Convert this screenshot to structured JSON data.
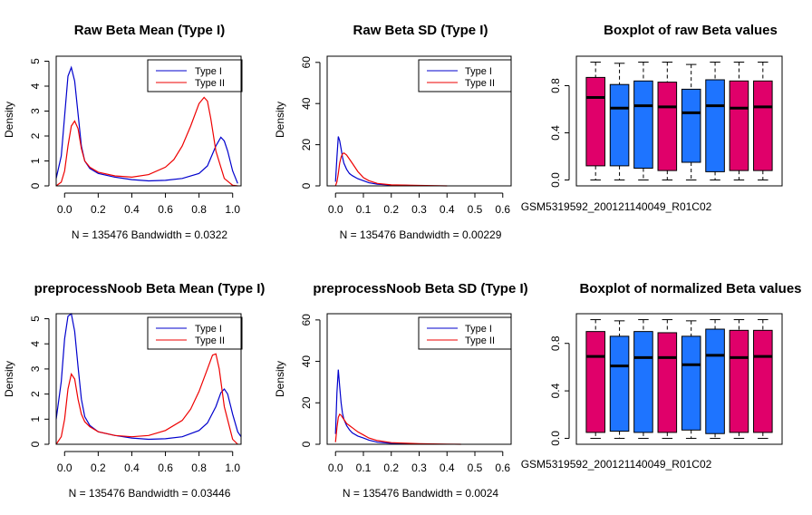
{
  "colors": {
    "type1": "#0000CD",
    "type2": "#EE0000",
    "magenta": "#E0006A",
    "blue": "#1E74FF",
    "axis": "#000000",
    "base": "#BEBEBE"
  },
  "panels": [
    {
      "id": "p1",
      "title": "Raw Beta Mean (Type I)",
      "footer": "N = 135476   Bandwidth = 0.0322",
      "ylabel": "Density"
    },
    {
      "id": "p2",
      "title": "Raw Beta SD (Type I)",
      "footer": "N = 135476   Bandwidth = 0.00229",
      "ylabel": "Density"
    },
    {
      "id": "p3",
      "title": "Boxplot of raw Beta values",
      "footer": "GSM5319592_200121140049_R01C02"
    },
    {
      "id": "p4",
      "title": "preprocessNoob Beta Mean (Type I)",
      "footer": "N = 135476   Bandwidth = 0.03446",
      "ylabel": "Density"
    },
    {
      "id": "p5",
      "title": "preprocessNoob Beta SD (Type I)",
      "footer": "N = 135476   Bandwidth = 0.0024",
      "ylabel": "Density"
    },
    {
      "id": "p6",
      "title": "Boxplot of normalized Beta values",
      "footer": "GSM5319592_200121140049_R01C02"
    }
  ],
  "legend": [
    "Type I",
    "Type II"
  ],
  "chart_data": [
    {
      "type": "line",
      "title": "Raw Beta Mean (Type I)",
      "xlabel": "N = 135476   Bandwidth = 0.0322",
      "ylabel": "Density",
      "xlim": [
        -0.05,
        1.05
      ],
      "ylim": [
        0,
        5.2
      ],
      "xticks": [
        "0.0",
        "0.2",
        "0.4",
        "0.6",
        "0.8",
        "1.0"
      ],
      "yticks": [
        "0",
        "1",
        "2",
        "3",
        "4",
        "5"
      ],
      "series": [
        {
          "name": "Type I",
          "x": [
            -0.05,
            -0.02,
            0.0,
            0.02,
            0.04,
            0.06,
            0.08,
            0.1,
            0.12,
            0.15,
            0.2,
            0.3,
            0.4,
            0.5,
            0.6,
            0.7,
            0.8,
            0.85,
            0.9,
            0.93,
            0.95,
            0.97,
            1.0,
            1.03
          ],
          "y": [
            0.3,
            1.2,
            2.8,
            4.4,
            4.75,
            4.2,
            2.9,
            1.6,
            1.0,
            0.7,
            0.5,
            0.35,
            0.25,
            0.2,
            0.22,
            0.3,
            0.5,
            0.8,
            1.6,
            1.95,
            1.8,
            1.4,
            0.6,
            0.1
          ]
        },
        {
          "name": "Type II",
          "x": [
            -0.05,
            -0.02,
            0.0,
            0.02,
            0.04,
            0.06,
            0.08,
            0.1,
            0.12,
            0.15,
            0.2,
            0.3,
            0.4,
            0.5,
            0.6,
            0.65,
            0.7,
            0.75,
            0.8,
            0.83,
            0.85,
            0.87,
            0.9,
            0.95,
            1.0,
            1.03
          ],
          "y": [
            0.0,
            0.15,
            0.6,
            1.6,
            2.4,
            2.6,
            2.3,
            1.5,
            1.0,
            0.75,
            0.55,
            0.4,
            0.35,
            0.45,
            0.75,
            1.05,
            1.6,
            2.4,
            3.3,
            3.55,
            3.4,
            2.7,
            1.4,
            0.3,
            0.02,
            0.0
          ]
        }
      ]
    },
    {
      "type": "line",
      "title": "Raw Beta SD (Type I)",
      "xlabel": "N = 135476   Bandwidth = 0.00229",
      "ylabel": "Density",
      "xlim": [
        -0.03,
        0.63
      ],
      "ylim": [
        0,
        63
      ],
      "xticks": [
        "0.0",
        "0.1",
        "0.2",
        "0.3",
        "0.4",
        "0.5",
        "0.6"
      ],
      "yticks": [
        "0",
        "20",
        "40",
        "60"
      ],
      "series": [
        {
          "name": "Type I",
          "x": [
            0.0,
            0.005,
            0.01,
            0.015,
            0.02,
            0.025,
            0.03,
            0.04,
            0.05,
            0.06,
            0.08,
            0.1,
            0.12,
            0.15,
            0.2,
            0.25,
            0.28
          ],
          "y": [
            2,
            14,
            24,
            22,
            18,
            14,
            11,
            8,
            6,
            5,
            3.5,
            2.5,
            1.5,
            0.8,
            0.4,
            0.3,
            0.05
          ]
        },
        {
          "name": "Type II",
          "x": [
            0.0,
            0.005,
            0.01,
            0.015,
            0.02,
            0.025,
            0.03,
            0.04,
            0.05,
            0.06,
            0.08,
            0.1,
            0.12,
            0.15,
            0.2,
            0.3,
            0.4
          ],
          "y": [
            0,
            2,
            6,
            11,
            14,
            15.5,
            16,
            15,
            13,
            11,
            7,
            4,
            2.5,
            1.2,
            0.5,
            0.2,
            0.0
          ]
        }
      ]
    },
    {
      "type": "box",
      "title": "Boxplot of raw Beta values",
      "xlabel": "GSM5319592_200121140049_R01C02",
      "ylim": [
        -0.05,
        1.05
      ],
      "yticks": [
        "0.0",
        "0.4",
        "0.8"
      ],
      "boxes": [
        {
          "color": "magenta",
          "min": 0.0,
          "q1": 0.12,
          "median": 0.7,
          "q3": 0.87,
          "max": 1.0
        },
        {
          "color": "blue",
          "min": 0.0,
          "q1": 0.12,
          "median": 0.61,
          "q3": 0.81,
          "max": 0.99
        },
        {
          "color": "blue",
          "min": 0.0,
          "q1": 0.1,
          "median": 0.63,
          "q3": 0.84,
          "max": 1.0
        },
        {
          "color": "magenta",
          "min": 0.0,
          "q1": 0.08,
          "median": 0.62,
          "q3": 0.83,
          "max": 1.0
        },
        {
          "color": "blue",
          "min": 0.0,
          "q1": 0.15,
          "median": 0.57,
          "q3": 0.77,
          "max": 0.98
        },
        {
          "color": "blue",
          "min": 0.0,
          "q1": 0.07,
          "median": 0.63,
          "q3": 0.85,
          "max": 1.0
        },
        {
          "color": "magenta",
          "min": 0.0,
          "q1": 0.08,
          "median": 0.61,
          "q3": 0.84,
          "max": 1.0
        },
        {
          "color": "magenta",
          "min": 0.0,
          "q1": 0.08,
          "median": 0.62,
          "q3": 0.84,
          "max": 1.0
        }
      ]
    },
    {
      "type": "line",
      "title": "preprocessNoob Beta Mean (Type I)",
      "xlabel": "N = 135476   Bandwidth = 0.03446",
      "ylabel": "Density",
      "xlim": [
        -0.05,
        1.05
      ],
      "ylim": [
        0,
        5.2
      ],
      "xticks": [
        "0.0",
        "0.2",
        "0.4",
        "0.6",
        "0.8",
        "1.0"
      ],
      "yticks": [
        "0",
        "1",
        "2",
        "3",
        "4",
        "5"
      ],
      "series": [
        {
          "name": "Type I",
          "x": [
            -0.05,
            -0.02,
            0.0,
            0.02,
            0.04,
            0.06,
            0.08,
            0.1,
            0.12,
            0.15,
            0.2,
            0.3,
            0.4,
            0.5,
            0.6,
            0.7,
            0.8,
            0.85,
            0.9,
            0.93,
            0.95,
            0.97,
            1.0,
            1.03,
            1.05
          ],
          "y": [
            1.0,
            2.5,
            4.2,
            5.1,
            5.2,
            4.5,
            3.1,
            1.8,
            1.1,
            0.75,
            0.5,
            0.35,
            0.25,
            0.2,
            0.22,
            0.3,
            0.55,
            0.85,
            1.5,
            2.05,
            2.2,
            2.0,
            1.2,
            0.5,
            0.3
          ]
        },
        {
          "name": "Type II",
          "x": [
            -0.05,
            -0.02,
            0.0,
            0.02,
            0.04,
            0.06,
            0.08,
            0.1,
            0.12,
            0.15,
            0.2,
            0.3,
            0.4,
            0.5,
            0.6,
            0.7,
            0.75,
            0.8,
            0.85,
            0.88,
            0.9,
            0.92,
            0.95,
            1.0,
            1.03
          ],
          "y": [
            0.0,
            0.3,
            1.0,
            2.2,
            2.8,
            2.6,
            1.8,
            1.2,
            0.9,
            0.7,
            0.5,
            0.35,
            0.3,
            0.35,
            0.55,
            0.95,
            1.4,
            2.1,
            3.0,
            3.55,
            3.6,
            3.0,
            1.5,
            0.2,
            0.0
          ]
        }
      ]
    },
    {
      "type": "line",
      "title": "preprocessNoob Beta SD (Type I)",
      "xlabel": "N = 135476   Bandwidth = 0.0024",
      "ylabel": "Density",
      "xlim": [
        -0.03,
        0.63
      ],
      "ylim": [
        0,
        63
      ],
      "xticks": [
        "0.0",
        "0.1",
        "0.2",
        "0.3",
        "0.4",
        "0.5",
        "0.6"
      ],
      "yticks": [
        "0",
        "20",
        "40",
        "60"
      ],
      "series": [
        {
          "name": "Type I",
          "x": [
            0.0,
            0.005,
            0.01,
            0.015,
            0.02,
            0.025,
            0.03,
            0.04,
            0.05,
            0.06,
            0.08,
            0.1,
            0.12,
            0.15,
            0.2,
            0.25,
            0.29
          ],
          "y": [
            5,
            25,
            36,
            28,
            20,
            15,
            12,
            9,
            7,
            5.5,
            4,
            3,
            2,
            1,
            0.5,
            0.3,
            0.05
          ]
        },
        {
          "name": "Type II",
          "x": [
            0.0,
            0.005,
            0.01,
            0.015,
            0.02,
            0.025,
            0.03,
            0.04,
            0.05,
            0.06,
            0.08,
            0.1,
            0.12,
            0.15,
            0.2,
            0.3,
            0.4,
            0.45
          ],
          "y": [
            1,
            8,
            13,
            14.5,
            14,
            13,
            12,
            10,
            9,
            8,
            6,
            4.5,
            3,
            1.8,
            0.8,
            0.3,
            0.1,
            0.0
          ]
        }
      ]
    },
    {
      "type": "box",
      "title": "Boxplot of normalized Beta values",
      "xlabel": "GSM5319592_200121140049_R01C02",
      "ylim": [
        -0.05,
        1.05
      ],
      "yticks": [
        "0.0",
        "0.4",
        "0.8"
      ],
      "boxes": [
        {
          "color": "magenta",
          "min": 0.0,
          "q1": 0.05,
          "median": 0.69,
          "q3": 0.9,
          "max": 1.0
        },
        {
          "color": "blue",
          "min": 0.0,
          "q1": 0.06,
          "median": 0.61,
          "q3": 0.86,
          "max": 0.99
        },
        {
          "color": "blue",
          "min": 0.0,
          "q1": 0.05,
          "median": 0.68,
          "q3": 0.9,
          "max": 1.0
        },
        {
          "color": "magenta",
          "min": 0.0,
          "q1": 0.05,
          "median": 0.68,
          "q3": 0.89,
          "max": 1.0
        },
        {
          "color": "blue",
          "min": 0.0,
          "q1": 0.07,
          "median": 0.62,
          "q3": 0.86,
          "max": 0.99
        },
        {
          "color": "blue",
          "min": 0.0,
          "q1": 0.04,
          "median": 0.7,
          "q3": 0.92,
          "max": 1.0
        },
        {
          "color": "magenta",
          "min": 0.0,
          "q1": 0.05,
          "median": 0.68,
          "q3": 0.91,
          "max": 1.0
        },
        {
          "color": "magenta",
          "min": 0.0,
          "q1": 0.05,
          "median": 0.69,
          "q3": 0.91,
          "max": 1.0
        }
      ]
    }
  ]
}
